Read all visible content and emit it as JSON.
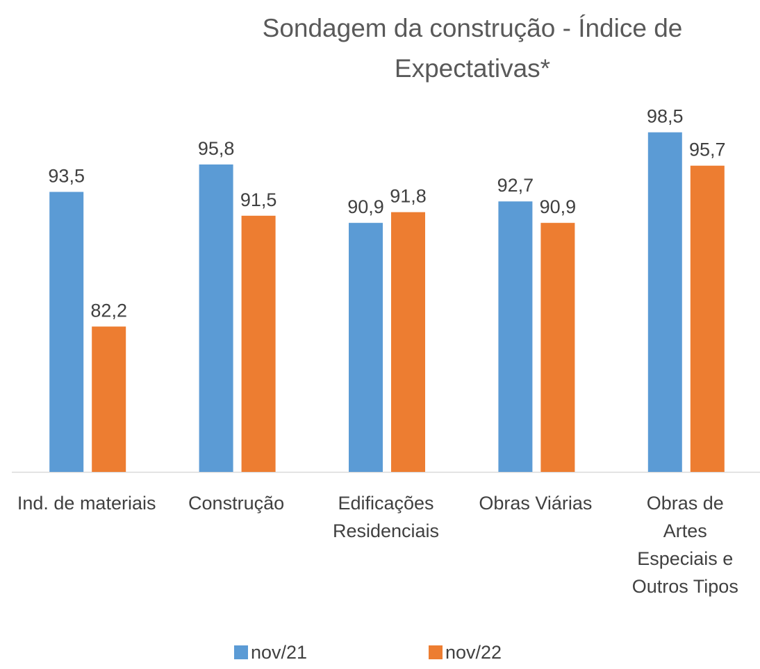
{
  "chart_data": {
    "type": "bar",
    "title": "Sondagem da construção - Índice de Expectativas*",
    "categories": [
      "Ind. de materiais",
      "Construção",
      "Edificações Residenciais",
      "Obras Viárias",
      "Obras de Artes Especiais e Outros Tipos"
    ],
    "series": [
      {
        "name": "nov/21",
        "color": "#5b9bd5",
        "values": [
          93.5,
          95.8,
          90.9,
          92.7,
          98.5
        ],
        "value_labels": [
          "93,5",
          "95,8",
          "90,9",
          "92,7",
          "98,5"
        ]
      },
      {
        "name": "nov/22",
        "color": "#ed7d31",
        "values": [
          82.2,
          91.5,
          91.8,
          90.9,
          95.7
        ],
        "value_labels": [
          "82,2",
          "91,5",
          "91,8",
          "90,9",
          "95,7"
        ]
      }
    ],
    "ylim": [
      70,
      100
    ],
    "legend": "bottom"
  }
}
